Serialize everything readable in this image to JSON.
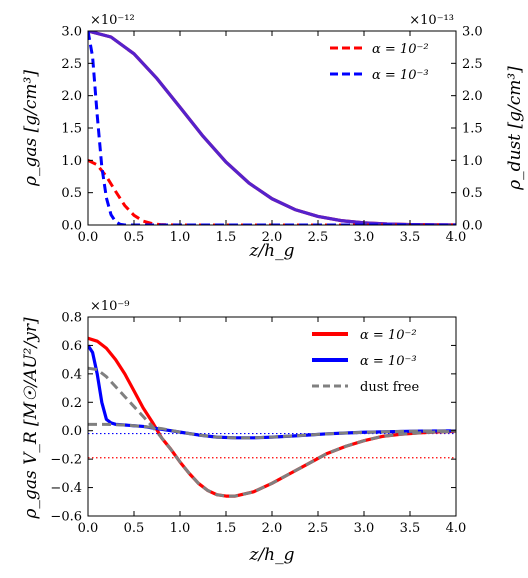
{
  "chart_data": [
    {
      "type": "line",
      "title": "",
      "xlabel": "z/h_g",
      "ylabel_left": "ρ_gas [g/cm³]",
      "ylabel_right": "ρ_dust [g/cm³]",
      "xlim": [
        0.0,
        4.0
      ],
      "ylim_left": [
        0.0,
        3.0
      ],
      "ylim_right": [
        0.0,
        3.0
      ],
      "left_multiplier": "×10⁻¹²",
      "right_multiplier": "×10⁻¹³",
      "x_ticks": [
        "0.0",
        "0.5",
        "1.0",
        "1.5",
        "2.0",
        "2.5",
        "3.0",
        "3.5",
        "4.0"
      ],
      "y_ticks_left": [
        "0.0",
        "0.5",
        "1.0",
        "1.5",
        "2.0",
        "2.5",
        "3.0"
      ],
      "y_ticks_right": [
        "0.0",
        "0.5",
        "1.0",
        "1.5",
        "2.0",
        "2.5",
        "3.0"
      ],
      "legend_placement": "top-right",
      "legend": [
        {
          "label": "α = 10⁻²",
          "color": "#ff0000",
          "style": "dashed"
        },
        {
          "label": "α = 10⁻³",
          "color": "#0000ff",
          "style": "dashed"
        }
      ],
      "series": [
        {
          "name": "α = 10⁻² gas",
          "color": "#ff0000",
          "style": "solid",
          "axis": "left",
          "x": [
            0.0,
            0.25,
            0.5,
            0.75,
            1.0,
            1.25,
            1.5,
            1.75,
            2.0,
            2.25,
            2.5,
            2.75,
            3.0,
            3.25,
            3.5,
            3.75,
            4.0
          ],
          "y": [
            3.0,
            2.907,
            2.647,
            2.264,
            1.82,
            1.373,
            0.974,
            0.648,
            0.406,
            0.238,
            0.132,
            0.068,
            0.033,
            0.015,
            0.007,
            0.003,
            0.001
          ]
        },
        {
          "name": "α = 10⁻³ gas",
          "color": "#5522cc",
          "style": "solid",
          "axis": "left",
          "x": [
            0.0,
            0.25,
            0.5,
            0.75,
            1.0,
            1.25,
            1.5,
            1.75,
            2.0,
            2.25,
            2.5,
            2.75,
            3.0,
            3.25,
            3.5,
            3.75,
            4.0
          ],
          "y": [
            3.0,
            2.907,
            2.647,
            2.264,
            1.82,
            1.373,
            0.974,
            0.648,
            0.406,
            0.238,
            0.132,
            0.068,
            0.033,
            0.015,
            0.007,
            0.003,
            0.001
          ]
        },
        {
          "name": "α = 10⁻² dust",
          "color": "#ff0000",
          "style": "dashed",
          "axis": "right",
          "x": [
            0.0,
            0.1,
            0.2,
            0.3,
            0.4,
            0.5,
            0.6,
            0.7,
            0.8,
            1.0,
            4.0
          ],
          "y": [
            1.0,
            0.93,
            0.75,
            0.52,
            0.3,
            0.15,
            0.06,
            0.02,
            0.005,
            0.0,
            0.0
          ]
        },
        {
          "name": "α = 10⁻³ dust",
          "color": "#0000ff",
          "style": "dashed",
          "axis": "right",
          "x": [
            0.0,
            0.05,
            0.1,
            0.15,
            0.2,
            0.25,
            0.3,
            0.35,
            0.4,
            0.5,
            4.0
          ],
          "y": [
            3.0,
            2.6,
            1.7,
            0.9,
            0.42,
            0.16,
            0.05,
            0.01,
            0.0,
            0.0,
            0.0
          ]
        }
      ]
    },
    {
      "type": "line",
      "title": "",
      "xlabel": "z/h_g",
      "ylabel": "ρ_gas V_R [M☉/AU²/yr]",
      "xlim": [
        0.0,
        4.0
      ],
      "ylim": [
        -0.6,
        0.8
      ],
      "multiplier": "×10⁻⁹",
      "x_ticks": [
        "0.0",
        "0.5",
        "1.0",
        "1.5",
        "2.0",
        "2.5",
        "3.0",
        "3.5",
        "4.0"
      ],
      "y_ticks": [
        "−0.6",
        "−0.4",
        "−0.2",
        "0.0",
        "0.2",
        "0.4",
        "0.6",
        "0.8"
      ],
      "legend_placement": "top-right",
      "legend": [
        {
          "label": "α = 10⁻²",
          "color": "#ff0000",
          "style": "solid"
        },
        {
          "label": "α = 10⁻³",
          "color": "#0000ff",
          "style": "solid"
        },
        {
          "label": "dust free",
          "color": "#808080",
          "style": "dashed"
        }
      ],
      "reference_lines": [
        {
          "y": -0.19,
          "color": "#ff0000",
          "style": "dotted"
        },
        {
          "y": -0.02,
          "color": "#0000ff",
          "style": "dotted"
        }
      ],
      "series": [
        {
          "name": "α = 10⁻²",
          "color": "#ff0000",
          "style": "solid",
          "x": [
            0.0,
            0.1,
            0.2,
            0.3,
            0.4,
            0.5,
            0.6,
            0.7,
            0.8,
            0.9,
            1.0,
            1.1,
            1.2,
            1.3,
            1.4,
            1.5,
            1.6,
            1.8,
            2.0,
            2.2,
            2.4,
            2.6,
            2.8,
            3.0,
            3.2,
            3.4,
            3.6,
            3.8,
            4.0
          ],
          "y": [
            0.65,
            0.63,
            0.58,
            0.5,
            0.4,
            0.28,
            0.16,
            0.06,
            -0.05,
            -0.13,
            -0.22,
            -0.3,
            -0.37,
            -0.42,
            -0.45,
            -0.46,
            -0.46,
            -0.43,
            -0.37,
            -0.3,
            -0.23,
            -0.16,
            -0.11,
            -0.07,
            -0.04,
            -0.025,
            -0.015,
            -0.008,
            -0.005
          ]
        },
        {
          "name": "α = 10⁻³",
          "color": "#0000ff",
          "style": "solid",
          "x": [
            0.0,
            0.05,
            0.1,
            0.15,
            0.2,
            0.25,
            0.3,
            0.4,
            0.5,
            0.6,
            0.7,
            0.8,
            0.9,
            1.0,
            1.2,
            1.4,
            1.6,
            1.8,
            2.0,
            2.2,
            2.4,
            2.6,
            2.8,
            3.0,
            3.2,
            3.4,
            3.6,
            3.8,
            4.0
          ],
          "y": [
            0.6,
            0.55,
            0.4,
            0.2,
            0.08,
            0.055,
            0.045,
            0.04,
            0.035,
            0.03,
            0.02,
            0.01,
            0.0,
            -0.01,
            -0.03,
            -0.045,
            -0.05,
            -0.05,
            -0.045,
            -0.038,
            -0.03,
            -0.022,
            -0.016,
            -0.011,
            -0.008,
            -0.005,
            -0.003,
            -0.002,
            -0.001
          ]
        },
        {
          "name": "dust free (lower)",
          "color": "#808080",
          "style": "dashed",
          "x": [
            0.0,
            0.2,
            0.4,
            0.6,
            0.8,
            1.0,
            1.2,
            1.4,
            1.6,
            1.8,
            2.0,
            2.2,
            2.4,
            2.6,
            2.8,
            3.0,
            3.2,
            3.4,
            3.6,
            3.8,
            4.0
          ],
          "y": [
            0.045,
            0.045,
            0.04,
            0.03,
            0.015,
            -0.01,
            -0.03,
            -0.045,
            -0.05,
            -0.05,
            -0.045,
            -0.038,
            -0.03,
            -0.022,
            -0.016,
            -0.011,
            -0.008,
            -0.005,
            -0.003,
            -0.002,
            -0.001
          ]
        },
        {
          "name": "dust free (upper)",
          "color": "#808080",
          "style": "dashed",
          "x": [
            0.0,
            0.1,
            0.2,
            0.3,
            0.4,
            0.5,
            0.6,
            0.7,
            0.8,
            0.9,
            1.0,
            1.1,
            1.2,
            1.3,
            1.4,
            1.5,
            1.6,
            1.8,
            2.0,
            2.2,
            2.4,
            2.6,
            2.8,
            3.0,
            3.2,
            3.4,
            3.6,
            3.8,
            4.0
          ],
          "y": [
            0.44,
            0.43,
            0.38,
            0.31,
            0.24,
            0.17,
            0.1,
            0.03,
            -0.05,
            -0.13,
            -0.22,
            -0.3,
            -0.37,
            -0.42,
            -0.45,
            -0.46,
            -0.46,
            -0.43,
            -0.37,
            -0.3,
            -0.23,
            -0.16,
            -0.11,
            -0.07,
            -0.04,
            -0.025,
            -0.015,
            -0.008,
            -0.005
          ]
        }
      ]
    }
  ]
}
